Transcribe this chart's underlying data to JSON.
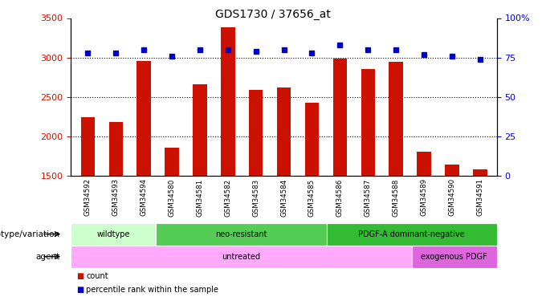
{
  "title": "GDS1730 / 37656_at",
  "samples": [
    "GSM34592",
    "GSM34593",
    "GSM34594",
    "GSM34580",
    "GSM34581",
    "GSM34582",
    "GSM34583",
    "GSM34584",
    "GSM34585",
    "GSM34586",
    "GSM34587",
    "GSM34588",
    "GSM34589",
    "GSM34590",
    "GSM34591"
  ],
  "counts": [
    2250,
    2180,
    2960,
    1860,
    2660,
    3380,
    2590,
    2620,
    2430,
    2990,
    2860,
    2950,
    1810,
    1650,
    1590
  ],
  "percentiles": [
    78,
    78,
    80,
    76,
    80,
    80,
    79,
    80,
    78,
    83,
    80,
    80,
    77,
    76,
    74
  ],
  "ylim_left": [
    1500,
    3500
  ],
  "ylim_right": [
    0,
    100
  ],
  "yticks_left": [
    1500,
    2000,
    2500,
    3000,
    3500
  ],
  "yticks_right": [
    0,
    25,
    50,
    75,
    100
  ],
  "bar_color": "#cc1100",
  "dot_color": "#0000cc",
  "genotype_groups": [
    {
      "label": "wildtype",
      "start": 0,
      "end": 3,
      "color": "#ccffcc"
    },
    {
      "label": "neo-resistant",
      "start": 3,
      "end": 9,
      "color": "#55cc55"
    },
    {
      "label": "PDGF-A dominant-negative",
      "start": 9,
      "end": 15,
      "color": "#33bb33"
    }
  ],
  "agent_groups": [
    {
      "label": "untreated",
      "start": 0,
      "end": 12,
      "color": "#ffaaff"
    },
    {
      "label": "exogenous PDGF",
      "start": 12,
      "end": 15,
      "color": "#dd66dd"
    }
  ],
  "legend_count_label": "count",
  "legend_pct_label": "percentile rank within the sample",
  "xlabel_genotype": "genotype/variation",
  "xlabel_agent": "agent",
  "bar_width": 0.5,
  "hlines": [
    3000,
    2500,
    2000
  ],
  "sample_bg_color": "#cccccc"
}
